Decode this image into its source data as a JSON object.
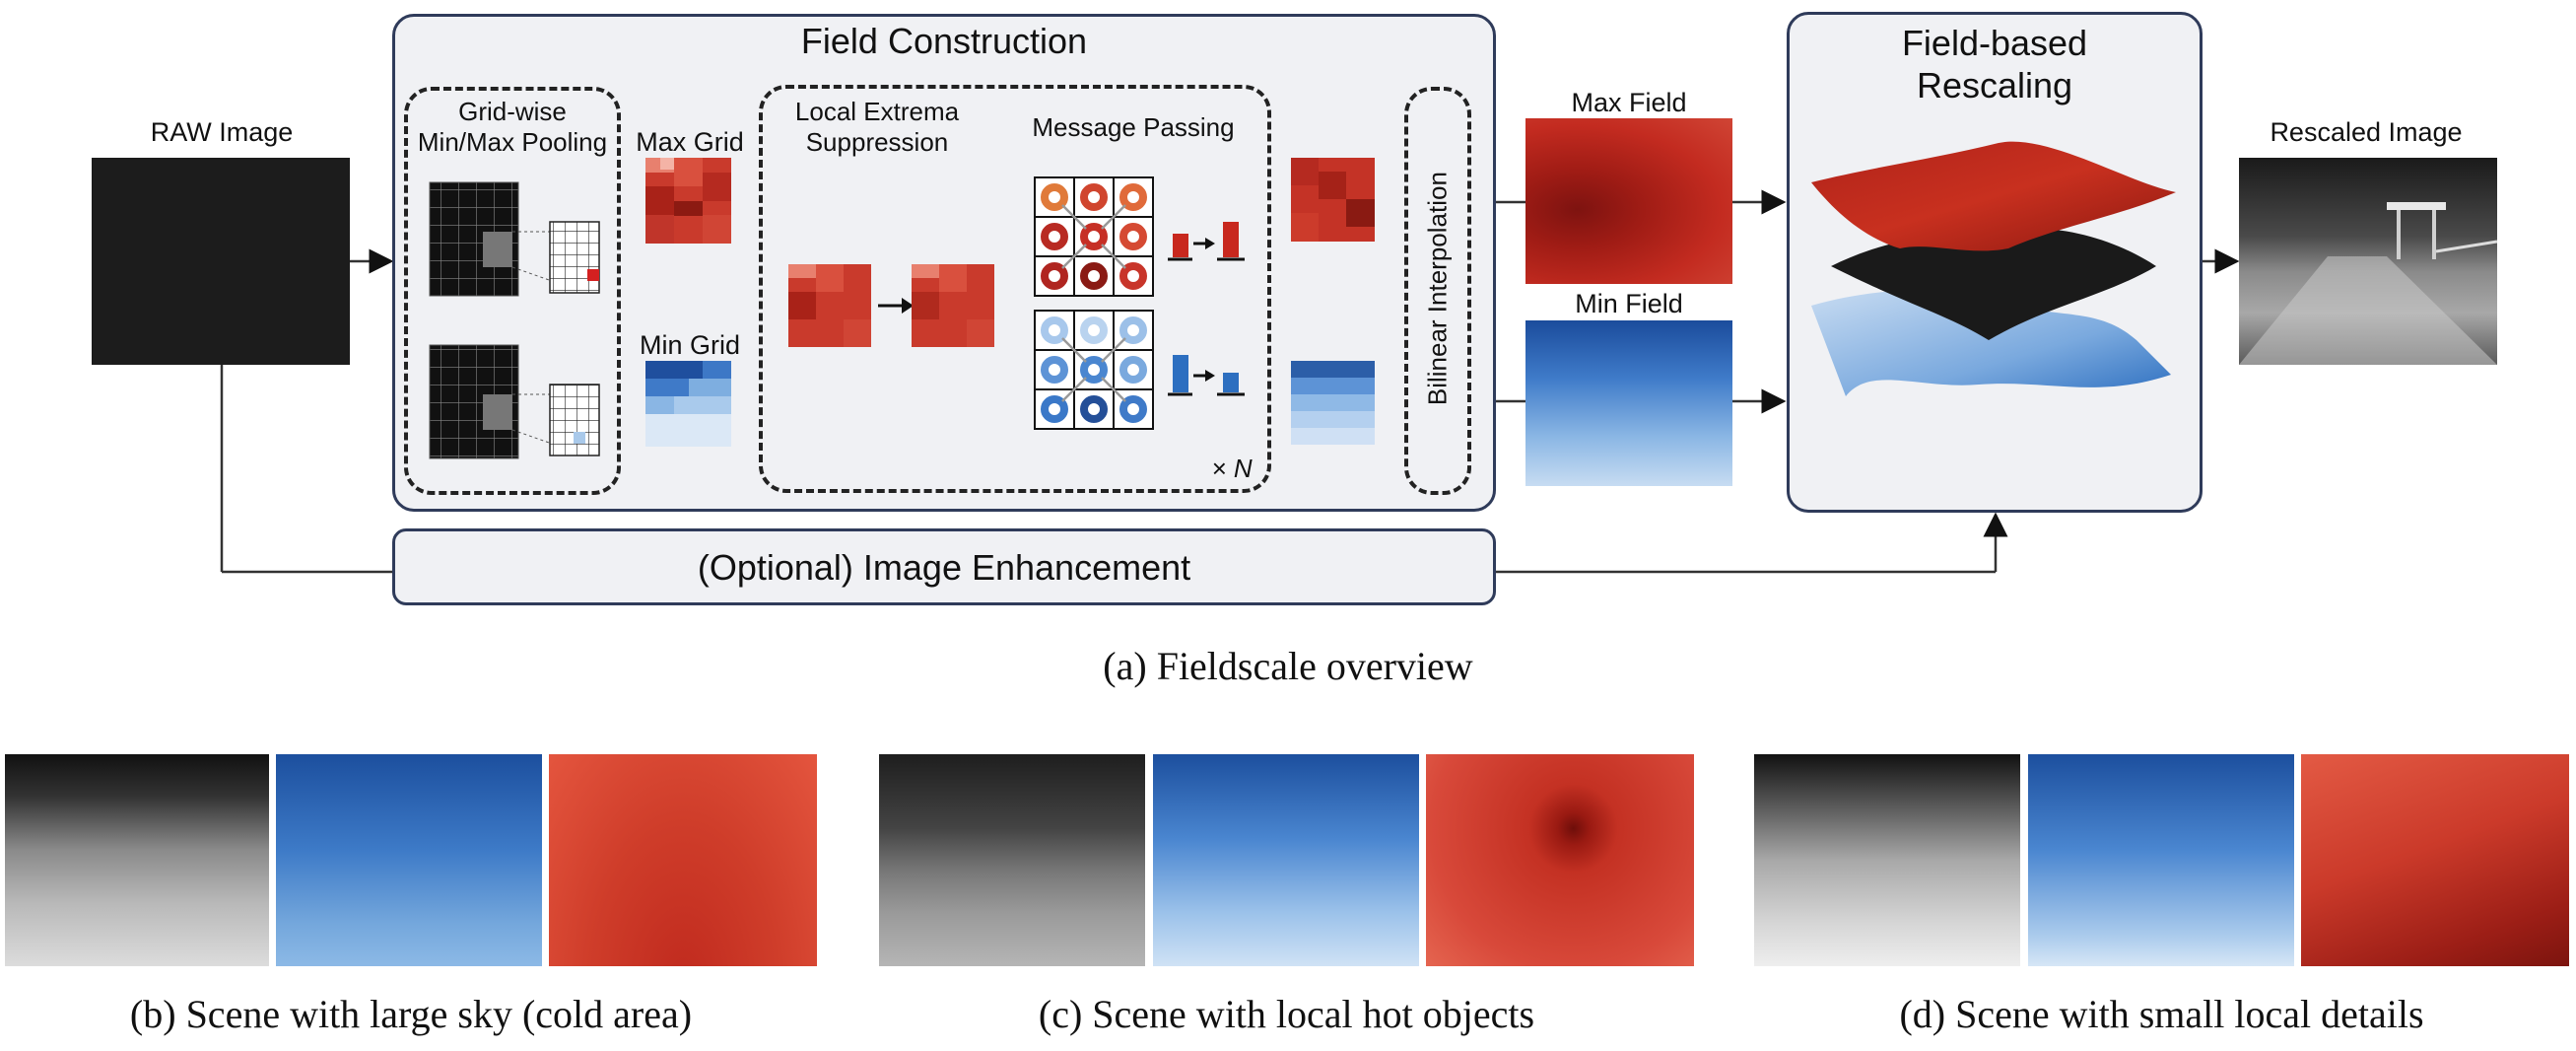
{
  "overview": {
    "raw_image_label": "RAW Image",
    "field_construction_title": "Field Construction",
    "pooling_label": "Grid-wise\nMin/Max Pooling",
    "max_grid_label": "Max Grid",
    "min_grid_label": "Min Grid",
    "suppression_label": "Local Extrema\nSuppression",
    "message_passing_label": "Message Passing",
    "repeat_label": "× N",
    "bilinear_label": "Bilinear Interpolation",
    "max_field_label": "Max Field",
    "min_field_label": "Min Field",
    "rescaling_title": "Field-based\nRescaling",
    "rescaled_image_label": "Rescaled Image",
    "enhancement_label": "(Optional) Image Enhancement",
    "caption": "(a)  Fieldscale overview"
  },
  "scenes": [
    {
      "caption": "(b)  Scene with large sky (cold area)"
    },
    {
      "caption": "(c)  Scene with local hot objects"
    },
    {
      "caption": "(d)  Scene with small local details"
    }
  ],
  "colors": {
    "panel_border": "#2f3b5a",
    "panel_fill": "#f0f1f4",
    "max_red": "#c8281e",
    "min_blue": "#2d6fc0"
  }
}
